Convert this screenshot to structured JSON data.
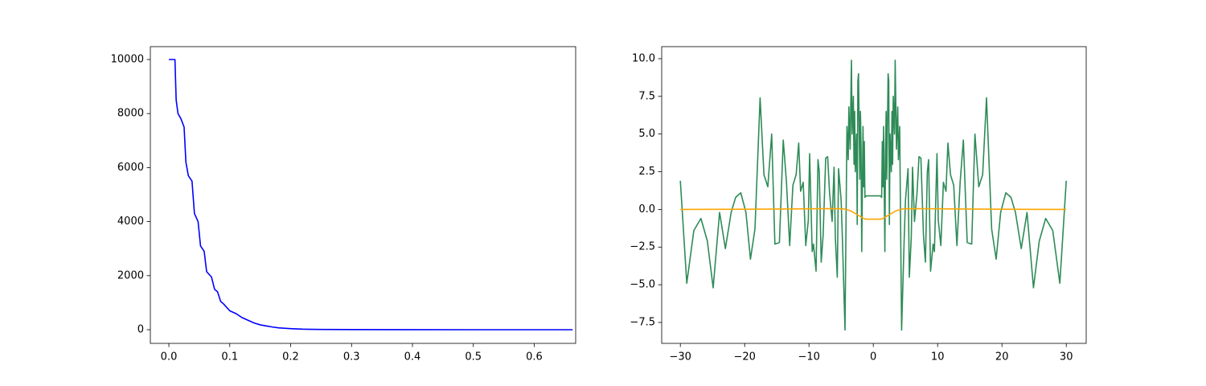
{
  "chart_data": [
    {
      "type": "line",
      "xlim": [
        -0.0304,
        0.668
      ],
      "ylim": [
        -506,
        10476
      ],
      "xticks": [
        {
          "value": 0,
          "label": "0.0"
        },
        0.1,
        0.2,
        0.3,
        0.4,
        0.5,
        0.6
      ],
      "yticks": [
        0,
        2000,
        4000,
        6000,
        8000,
        10000
      ],
      "series": [
        {
          "color": "#0000ff",
          "x": [
            0.0,
            0.01,
            0.012,
            0.015,
            0.02,
            0.025,
            0.028,
            0.032,
            0.038,
            0.042,
            0.048,
            0.052,
            0.058,
            0.062,
            0.07,
            0.075,
            0.08,
            0.085,
            0.09,
            0.1,
            0.11,
            0.12,
            0.13,
            0.14,
            0.15,
            0.16,
            0.17,
            0.18,
            0.2,
            0.22,
            0.25,
            0.3,
            0.4,
            0.5,
            0.663
          ],
          "values": [
            10000,
            10000,
            8500,
            8000,
            7800,
            7500,
            6200,
            5700,
            5500,
            4300,
            4000,
            3100,
            2900,
            2150,
            1950,
            1500,
            1400,
            1050,
            950,
            700,
            600,
            450,
            350,
            250,
            180,
            140,
            100,
            70,
            40,
            20,
            10,
            4,
            1,
            0,
            0
          ]
        }
      ]
    },
    {
      "type": "line",
      "xlim": [
        -32.9,
        33.1
      ],
      "ylim": [
        -8.89,
        10.8
      ],
      "xticks": [
        {
          "value": -30,
          "label": "−30"
        },
        {
          "value": -20,
          "label": "−20"
        },
        {
          "value": -10,
          "label": "−10"
        },
        0,
        10,
        20,
        30
      ],
      "yticks": [
        {
          "value": -7.5,
          "label": "−7.5"
        },
        {
          "value": -5,
          "label": "−5.0"
        },
        {
          "value": -2.5,
          "label": "−2.5"
        },
        {
          "value": 0,
          "label": "0.0"
        },
        2.5,
        {
          "value": 5,
          "label": "5.0"
        },
        7.5,
        {
          "value": 10,
          "label": "10.0"
        }
      ],
      "series": [
        {
          "color": "#2e8b57",
          "x": [
            -30,
            -29,
            -27.9,
            -26.8,
            -25.8,
            -24.9,
            -23.9,
            -23.0,
            -22.1,
            -21.4,
            -20.6,
            -19.8,
            -19.1,
            -18.4,
            -17.6,
            -17.0,
            -16.4,
            -15.8,
            -15.3,
            -14.6,
            -14.0,
            -13.5,
            -13.0,
            -12.5,
            -12.0,
            -11.6,
            -11.3,
            -10.9,
            -10.5,
            -10.1,
            -9.9,
            -9.5,
            -9.3,
            -8.9,
            -8.6,
            -8.4,
            -8.1,
            -7.8,
            -7.4,
            -7.1,
            -6.8,
            -6.4,
            -6.1,
            -5.9,
            -5.6,
            -5.4,
            -5.0,
            -4.8,
            -4.4,
            -4.1,
            -3.9,
            -3.8,
            -3.6,
            -3.5,
            -3.4,
            -3.3,
            -3.1,
            -3.0,
            -2.9,
            -2.8,
            -2.6,
            -2.5,
            -2.4,
            -2.3,
            -2.1,
            -2.0,
            -1.9,
            -1.8,
            -1.6,
            -1.5,
            -1.4,
            -1.3,
            -1.1,
            1.1,
            1.3,
            1.4,
            1.5,
            1.6,
            1.8,
            1.9,
            2.0,
            2.1,
            2.3,
            2.4,
            2.5,
            2.6,
            2.8,
            2.9,
            3.0,
            3.1,
            3.3,
            3.4,
            3.5,
            3.6,
            3.8,
            3.9,
            4.1,
            4.4,
            4.8,
            5.0,
            5.4,
            5.6,
            5.9,
            6.1,
            6.4,
            6.8,
            7.1,
            7.4,
            7.8,
            8.1,
            8.4,
            8.6,
            8.9,
            9.3,
            9.5,
            9.9,
            10.1,
            10.5,
            10.9,
            11.3,
            11.6,
            12.0,
            12.5,
            13.0,
            13.5,
            14.0,
            14.6,
            15.3,
            15.8,
            16.4,
            17.0,
            17.6,
            18.4,
            19.1,
            19.8,
            20.6,
            21.4,
            22.1,
            23.0,
            23.9,
            24.9,
            25.8,
            26.8,
            27.9,
            29,
            30
          ],
          "values": [
            1.9,
            -4.9,
            -1.4,
            -0.6,
            -2.1,
            -5.2,
            -0.2,
            -2.6,
            -0.2,
            0.8,
            1.1,
            -0.2,
            -3.3,
            -1.3,
            7.4,
            2.3,
            1.5,
            5.0,
            -2.3,
            -2.2,
            4.6,
            1.8,
            -2.4,
            1.6,
            2.3,
            4.4,
            1.2,
            1.8,
            -2.4,
            -0.7,
            3.7,
            -2.8,
            -2.3,
            -4.1,
            3.3,
            2.5,
            -3.5,
            -1.7,
            3.4,
            3.5,
            1.1,
            -0.8,
            2.8,
            -1.9,
            -4.5,
            2.7,
            0.6,
            -2.0,
            -8.0,
            5.5,
            3.3,
            6.8,
            4.0,
            7.0,
            9.9,
            5.0,
            7.5,
            3.0,
            6.5,
            2.5,
            5.0,
            -1.0,
            8.5,
            9.0,
            2.0,
            6.5,
            4.0,
            -2.8,
            5.5,
            1.5,
            4.5,
            0.8,
            0.9,
            0.9,
            0.8,
            4.5,
            1.5,
            5.5,
            -2.8,
            4.0,
            6.5,
            2.0,
            9.0,
            8.5,
            -1.0,
            5.0,
            2.5,
            6.5,
            3.0,
            7.5,
            5.0,
            9.9,
            7.0,
            4.0,
            6.8,
            3.3,
            5.5,
            -8.0,
            -2.0,
            0.6,
            2.7,
            -4.5,
            -1.9,
            2.8,
            -0.8,
            1.1,
            3.5,
            3.4,
            -1.7,
            -3.5,
            2.5,
            3.3,
            -4.1,
            -2.3,
            -2.8,
            3.7,
            -0.7,
            -2.4,
            1.8,
            1.2,
            4.4,
            2.3,
            1.6,
            -2.4,
            1.8,
            4.6,
            -2.2,
            -2.3,
            5.0,
            1.5,
            2.3,
            7.4,
            -1.3,
            -3.3,
            -0.2,
            1.1,
            0.8,
            -0.2,
            -2.6,
            -0.2,
            -5.2,
            -2.1,
            -0.6,
            -1.4,
            -4.9,
            1.9
          ]
        },
        {
          "color": "#ffa500",
          "x": [
            -30,
            -20,
            -10,
            -6,
            -4.5,
            -3.5,
            -2.5,
            -1.5,
            -1.1,
            1.1,
            1.5,
            2.5,
            3.5,
            4.5,
            6,
            10,
            20,
            30
          ],
          "values": [
            0,
            0.01,
            0.04,
            0.05,
            0.03,
            -0.1,
            -0.35,
            -0.6,
            -0.65,
            -0.65,
            -0.6,
            -0.35,
            -0.1,
            0.03,
            0.05,
            0.04,
            0.01,
            0
          ]
        }
      ]
    }
  ]
}
